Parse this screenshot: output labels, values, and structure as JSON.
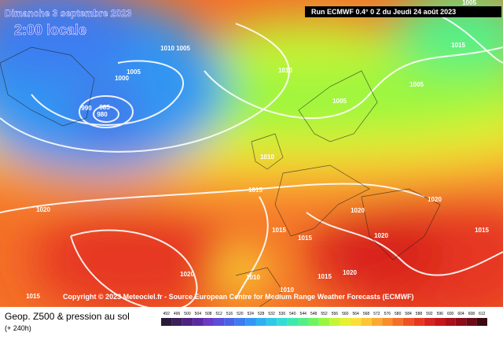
{
  "header": {
    "date": "Dimanche 3 septembre 2023",
    "time": "2:00 locale",
    "run": "Run ECMWF 0.4° 0 Z du Jeudi 24 août 2023"
  },
  "copyright": "Copyright © 2023 Meteociel.fr - Source European Centre for Medium Range Weather Forecasts (ECMWF)",
  "footer": {
    "title": "Geop. Z500 & pression au sol",
    "subtitle": "(+ 240h)"
  },
  "isobar_labels": [
    "1010",
    "1005",
    "1005",
    "1000",
    "990",
    "985",
    "980",
    "1010",
    "1015",
    "1005",
    "1005",
    "1010",
    "1015",
    "1020",
    "1020",
    "1020",
    "1015",
    "1015",
    "1020",
    "1020",
    "1010",
    "1015",
    "1020",
    "1015",
    "1010",
    "1015",
    "1005"
  ],
  "colorbar": {
    "levels": [
      492,
      496,
      500,
      504,
      508,
      512,
      516,
      520,
      524,
      528,
      532,
      536,
      540,
      544,
      548,
      552,
      556,
      560,
      564,
      568,
      572,
      576,
      580,
      584,
      588,
      592,
      596,
      600,
      604,
      608,
      612
    ],
    "colors": [
      "#2a1a3a",
      "#3d1f5c",
      "#4c2480",
      "#5a2aa0",
      "#6a3bc4",
      "#5a4fd8",
      "#4a63e6",
      "#3c7cf0",
      "#3396f2",
      "#2fb0f0",
      "#2fc8e8",
      "#33dcd4",
      "#3fe8b0",
      "#52ef88",
      "#6ef45c",
      "#98f640",
      "#c4f436",
      "#e8f032",
      "#fae036",
      "#fcc634",
      "#fbaa30",
      "#f88e2c",
      "#f47028",
      "#ee5224",
      "#e63820",
      "#d8241e",
      "#c4161c",
      "#a8101a",
      "#8c0c18",
      "#6e0a16",
      "#3a0a10"
    ]
  }
}
